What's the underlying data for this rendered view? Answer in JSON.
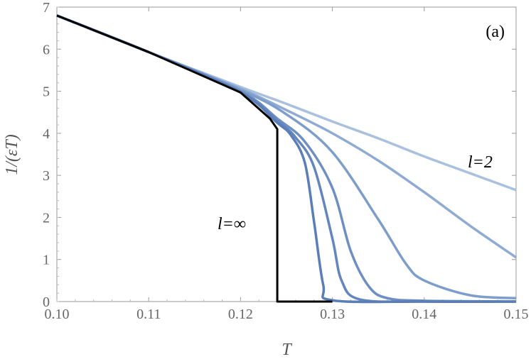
{
  "chart_data": {
    "type": "line",
    "title": "",
    "xlabel": "T",
    "ylabel": "1/(εT)",
    "xlim": [
      0.1,
      0.15
    ],
    "ylim": [
      0,
      7
    ],
    "grid": false,
    "x_ticks": [
      "0.10",
      "0.11",
      "0.12",
      "0.13",
      "0.14",
      "0.15"
    ],
    "y_ticks": [
      "0",
      "1",
      "2",
      "3",
      "4",
      "5",
      "6",
      "7"
    ],
    "panel_label": "(a)",
    "annotations": [
      {
        "text": "l=2",
        "target": "lightest curve"
      },
      {
        "text": "l=∞",
        "target": "black curve"
      }
    ],
    "series": [
      {
        "color": "#a9c0de",
        "x": [
          0.1,
          0.11,
          0.12,
          0.125,
          0.13,
          0.135,
          0.14,
          0.145,
          0.15
        ],
        "y": [
          6.8,
          5.93,
          5.1,
          4.7,
          4.28,
          3.88,
          3.45,
          3.05,
          2.65
        ]
      },
      {
        "color": "#8fabd3",
        "x": [
          0.1,
          0.11,
          0.12,
          0.125,
          0.13,
          0.135,
          0.14,
          0.145,
          0.15
        ],
        "y": [
          6.8,
          5.93,
          5.06,
          4.55,
          4.0,
          3.35,
          2.6,
          1.8,
          1.05
        ]
      },
      {
        "color": "#7d9dcb",
        "x": [
          0.1,
          0.11,
          0.12,
          0.125,
          0.13,
          0.135,
          0.138,
          0.14,
          0.145,
          0.15
        ],
        "y": [
          6.8,
          5.93,
          5.03,
          4.45,
          3.55,
          1.95,
          0.9,
          0.5,
          0.15,
          0.08
        ]
      },
      {
        "color": "#6e8fc3",
        "x": [
          0.1,
          0.11,
          0.12,
          0.124,
          0.127,
          0.13,
          0.132,
          0.134,
          0.136,
          0.14,
          0.15
        ],
        "y": [
          6.8,
          5.93,
          5.0,
          4.35,
          3.8,
          2.7,
          1.2,
          0.35,
          0.08,
          0.02,
          0.0
        ]
      },
      {
        "color": "#6485be",
        "x": [
          0.1,
          0.11,
          0.12,
          0.124,
          0.126,
          0.128,
          0.13,
          0.131,
          0.133,
          0.14,
          0.15
        ],
        "y": [
          6.8,
          5.93,
          4.98,
          4.3,
          3.9,
          3.2,
          1.5,
          0.5,
          0.05,
          0.0,
          0.0
        ]
      },
      {
        "color": "#5b7db9",
        "x": [
          0.1,
          0.11,
          0.12,
          0.124,
          0.1255,
          0.127,
          0.128,
          0.129,
          0.13,
          0.14,
          0.15
        ],
        "y": [
          6.8,
          5.93,
          4.97,
          4.25,
          3.95,
          3.3,
          1.9,
          0.4,
          0.03,
          0.0,
          0.0
        ]
      },
      {
        "color": "#000000",
        "x": [
          0.1,
          0.11,
          0.12,
          0.1232,
          0.124,
          0.124,
          0.13
        ],
        "y": [
          6.8,
          5.93,
          4.97,
          4.35,
          4.1,
          0.0,
          0.0
        ]
      }
    ]
  }
}
